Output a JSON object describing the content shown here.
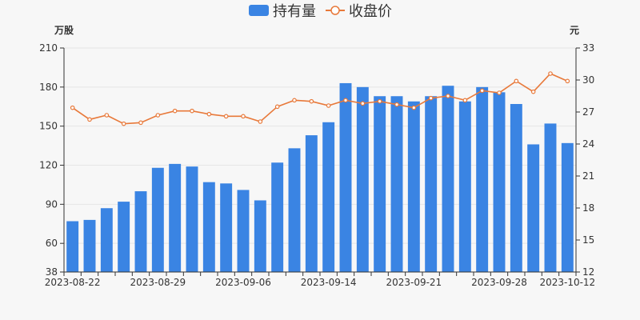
{
  "chart_data": {
    "type": "bar",
    "title": "",
    "legend": {
      "placement": "top-center",
      "items": [
        {
          "label": "持有量",
          "symbol": "bar",
          "color": "#3a84e3"
        },
        {
          "label": "收盘价",
          "symbol": "line",
          "color": "#e8793a"
        }
      ]
    },
    "y_left": {
      "unit": "万股",
      "ticks": [
        "38",
        "60",
        "90",
        "120",
        "150",
        "180",
        "210"
      ],
      "range": [
        38,
        210
      ]
    },
    "y_right": {
      "unit": "元",
      "ticks": [
        "12",
        "15",
        "18",
        "21",
        "24",
        "27",
        "30",
        "33"
      ],
      "range": [
        12,
        33
      ]
    },
    "x_ticks": [
      {
        "label": "2023-08-22",
        "index": 0
      },
      {
        "label": "2023-08-29",
        "index": 5
      },
      {
        "label": "2023-09-06",
        "index": 10
      },
      {
        "label": "2023-09-14",
        "index": 15
      },
      {
        "label": "2023-09-21",
        "index": 20
      },
      {
        "label": "2023-09-28",
        "index": 25
      },
      {
        "label": "2023-10-12",
        "index": 29
      }
    ],
    "grid": true,
    "series": [
      {
        "name": "持有量",
        "type": "bar",
        "axis": "left",
        "color": "#3a84e3",
        "values": [
          77,
          78,
          87,
          92,
          100,
          118,
          121,
          119,
          107,
          106,
          101,
          93,
          122,
          133,
          143,
          153,
          183,
          180,
          173,
          173,
          169,
          173,
          181,
          169,
          180,
          176,
          167,
          136,
          152,
          137
        ]
      },
      {
        "name": "收盘价",
        "type": "line",
        "axis": "right",
        "color": "#e8793a",
        "values": [
          27.4,
          26.3,
          26.7,
          25.9,
          26.0,
          26.7,
          27.1,
          27.1,
          26.8,
          26.6,
          26.6,
          26.1,
          27.5,
          28.1,
          28.0,
          27.6,
          28.1,
          27.8,
          28.0,
          27.7,
          27.4,
          28.3,
          28.5,
          28.1,
          29.0,
          28.8,
          29.9,
          28.9,
          30.6,
          29.9
        ]
      }
    ]
  }
}
